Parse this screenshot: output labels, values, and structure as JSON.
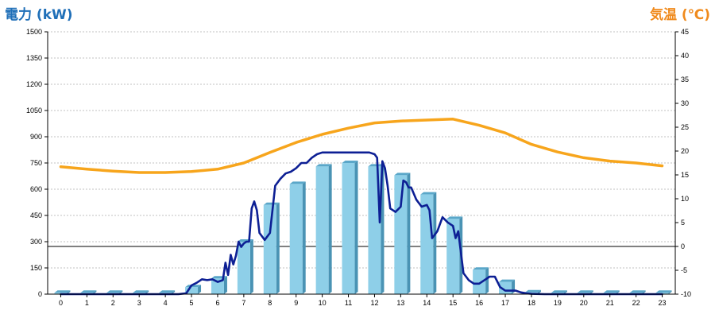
{
  "chart_data": {
    "type": "bar",
    "left_axis_title": "電力 (kW)",
    "right_axis_title": "気温 (℃)",
    "categories": [
      "0",
      "1",
      "2",
      "3",
      "4",
      "5",
      "6",
      "7",
      "8",
      "9",
      "10",
      "11",
      "12",
      "13",
      "14",
      "15",
      "16",
      "17",
      "18",
      "19",
      "20",
      "21",
      "22",
      "23"
    ],
    "left_ylim": [
      0,
      1500
    ],
    "left_ticks": [
      0,
      150,
      300,
      450,
      600,
      750,
      900,
      1050,
      1200,
      1350,
      1500
    ],
    "right_ylim": [
      -10,
      45
    ],
    "right_ticks": [
      -10,
      -5,
      0,
      5,
      10,
      15,
      20,
      25,
      30,
      35,
      40,
      45
    ],
    "grid": true,
    "zero_reference_line": 0,
    "series": [
      {
        "type": "bar",
        "axis": "left",
        "values": [
          8,
          8,
          8,
          8,
          8,
          40,
          90,
          300,
          510,
          630,
          730,
          750,
          730,
          680,
          570,
          430,
          140,
          70,
          10,
          8,
          8,
          8,
          8,
          8
        ]
      },
      {
        "type": "line",
        "axis": "left",
        "x": [
          0,
          1,
          2,
          3,
          4,
          4.5,
          4.8,
          5.0,
          5.2,
          5.4,
          5.6,
          5.8,
          6.0,
          6.2,
          6.3,
          6.4,
          6.5,
          6.6,
          6.7,
          6.8,
          6.9,
          7.0,
          7.1,
          7.2,
          7.3,
          7.4,
          7.5,
          7.6,
          7.8,
          8.0,
          8.2,
          8.4,
          8.6,
          8.8,
          9.0,
          9.2,
          9.4,
          9.6,
          9.8,
          10.0,
          10.2,
          10.4,
          10.6,
          10.8,
          11.0,
          11.2,
          11.4,
          11.6,
          11.8,
          12.0,
          12.1,
          12.2,
          12.3,
          12.4,
          12.5,
          12.6,
          12.8,
          13.0,
          13.1,
          13.2,
          13.3,
          13.4,
          13.6,
          13.8,
          14.0,
          14.1,
          14.2,
          14.4,
          14.6,
          14.8,
          15.0,
          15.1,
          15.2,
          15.4,
          15.6,
          15.8,
          16.0,
          16.2,
          16.4,
          16.6,
          16.8,
          17.0,
          17.2,
          17.4,
          17.6,
          17.8,
          18.0,
          18.5,
          19,
          20,
          21,
          22,
          23
        ],
        "values": [
          0,
          0,
          0,
          0,
          0,
          0,
          5,
          50,
          65,
          85,
          80,
          85,
          70,
          80,
          180,
          110,
          225,
          170,
          220,
          300,
          270,
          290,
          300,
          300,
          490,
          530,
          480,
          350,
          310,
          350,
          620,
          660,
          690,
          700,
          720,
          750,
          750,
          780,
          800,
          810,
          810,
          810,
          810,
          810,
          810,
          810,
          810,
          810,
          810,
          800,
          780,
          410,
          760,
          720,
          620,
          490,
          470,
          500,
          650,
          640,
          610,
          610,
          540,
          500,
          510,
          480,
          320,
          360,
          440,
          410,
          390,
          320,
          360,
          120,
          80,
          60,
          60,
          80,
          100,
          100,
          40,
          20,
          20,
          20,
          10,
          5,
          2,
          0,
          0,
          0,
          0,
          0,
          0
        ]
      },
      {
        "type": "line",
        "axis": "right",
        "x": [
          0,
          1,
          2,
          3,
          4,
          5,
          6,
          7,
          8,
          9,
          10,
          11,
          12,
          13,
          14,
          15,
          16,
          17,
          18,
          19,
          20,
          21,
          22,
          23
        ],
        "values": [
          16.7,
          16.2,
          15.8,
          15.5,
          15.5,
          15.7,
          16.2,
          17.5,
          19.7,
          21.8,
          23.5,
          24.8,
          25.9,
          26.3,
          26.5,
          26.7,
          25.4,
          23.8,
          21.4,
          19.8,
          18.6,
          17.9,
          17.5,
          16.9
        ]
      }
    ]
  },
  "colors": {
    "left_title": "#1f6fb8",
    "right_title": "#f08a1c",
    "bar_front": "#8ecfe8",
    "bar_top": "#5aa7c9",
    "bar_side": "#4a93b4",
    "power_line": "#0d1f94",
    "temp_line": "#f7a51c",
    "grid": "#c0c0c0"
  }
}
